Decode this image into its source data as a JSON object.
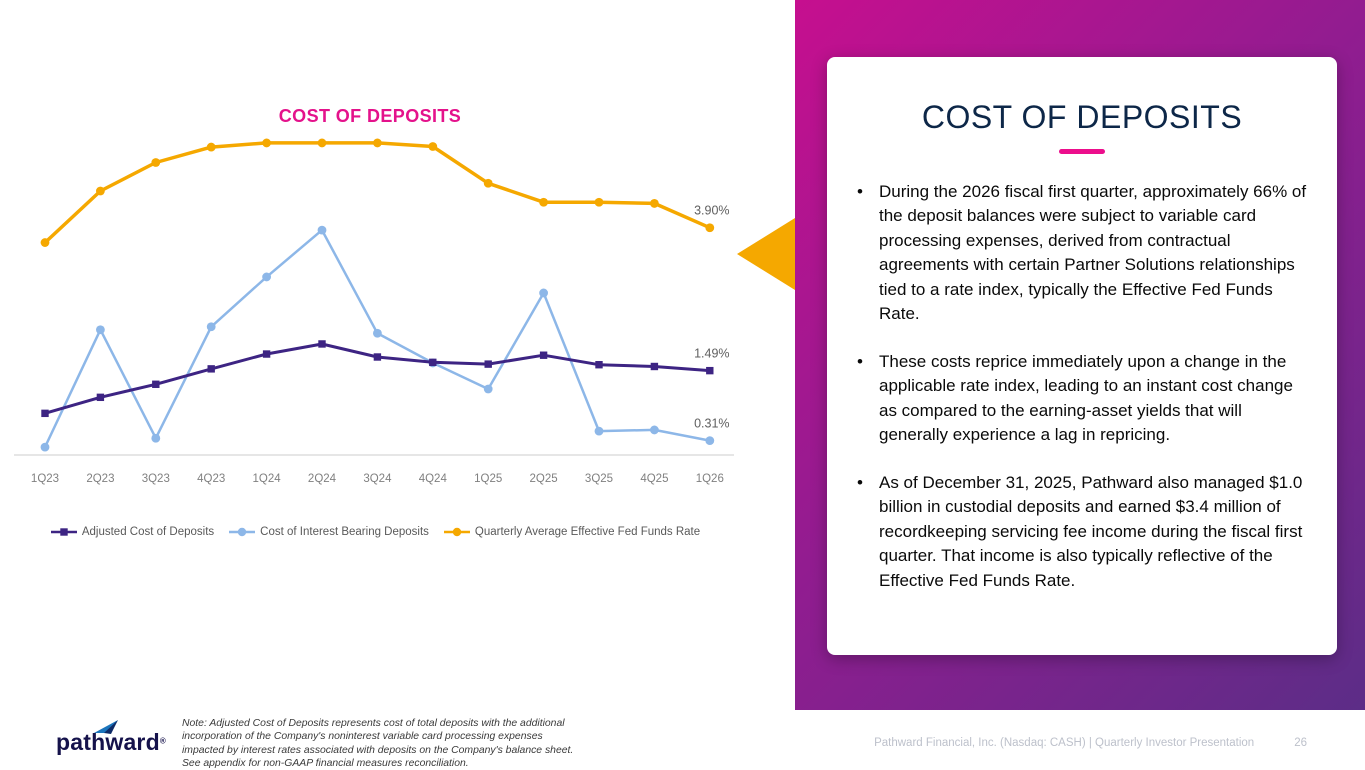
{
  "chart_data": {
    "type": "line",
    "title": "COST OF DEPOSITS",
    "categories": [
      "1Q23",
      "2Q23",
      "3Q23",
      "4Q23",
      "1Q24",
      "2Q24",
      "3Q24",
      "4Q24",
      "1Q25",
      "2Q25",
      "3Q25",
      "4Q25",
      "1Q26"
    ],
    "series": [
      {
        "name": "Adjusted Cost of Deposits",
        "marker": "square",
        "color": "#3D2483",
        "values": [
          0.77,
          1.04,
          1.26,
          1.52,
          1.77,
          1.94,
          1.72,
          1.63,
          1.6,
          1.75,
          1.59,
          1.56,
          1.49
        ],
        "end_label": "1.49%"
      },
      {
        "name": "Cost of Interest Bearing Deposits",
        "marker": "circle",
        "color": "#8DB7E8",
        "values": [
          0.2,
          2.18,
          0.35,
          2.23,
          3.07,
          3.86,
          2.12,
          1.62,
          1.18,
          2.8,
          0.47,
          0.49,
          0.31
        ],
        "end_label": "0.31%"
      },
      {
        "name": "Quarterly Average Effective Fed Funds Rate",
        "marker": "circle",
        "color": "#F5A800",
        "values": [
          3.65,
          4.52,
          5.0,
          5.26,
          5.33,
          5.33,
          5.33,
          5.27,
          4.65,
          4.33,
          4.33,
          4.31,
          3.9
        ],
        "end_label": "3.90%"
      }
    ],
    "ylim": [
      0,
      6
    ],
    "grid": false,
    "legend_position": "bottom",
    "y_axis_shown": false
  },
  "panel": {
    "title": "COST OF DEPOSITS",
    "bullets": [
      "During the 2026 fiscal first quarter, approximately 66% of the deposit balances were subject to variable card processing expenses, derived from contractual agreements with certain Partner Solutions relationships tied to a rate index, typically the Effective Fed Funds Rate.",
      "These costs reprice immediately upon a change in the applicable rate index, leading to an instant cost change as compared to the earning-asset yields that will generally experience a lag in repricing.",
      "As of December 31, 2025, Pathward also managed $1.0 billion in custodial deposits and earned $3.4 million of recordkeeping servicing fee income during the fiscal first quarter. That income is also typically reflective of the Effective Fed Funds Rate."
    ]
  },
  "footer": {
    "note": "Note: Adjusted Cost of Deposits represents cost of total deposits with the additional incorporation of the Company's noninterest variable card processing expenses impacted by interest rates associated with deposits on the Company's balance sheet. See appendix for non-GAAP financial measures reconciliation.",
    "attribution": "Pathward Financial, Inc. (Nasdaq: CASH) | Quarterly Investor Presentation",
    "page_number": "26",
    "logo_text": "pathward",
    "logo_reg_mark": "®"
  },
  "colors": {
    "chart_title": "#E4128B",
    "panel_gradient_start": "#C60F8F",
    "panel_gradient_end": "#5C2D87",
    "accent_underline": "#EC0E8C",
    "callout_arrow": "#F5A800",
    "card_title": "#0D2748",
    "axis_text": "#808080"
  }
}
